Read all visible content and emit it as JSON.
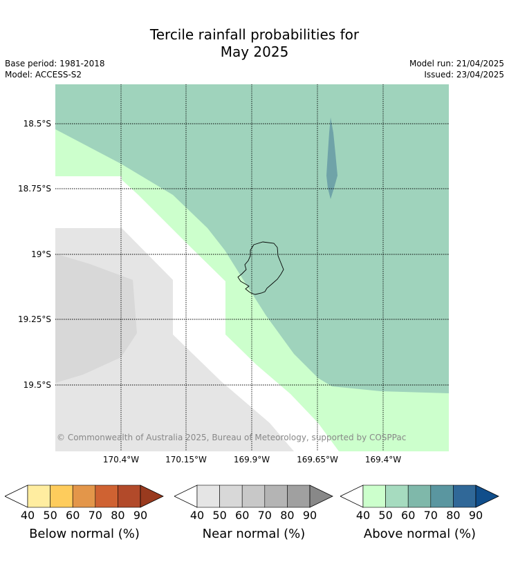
{
  "title_line1": "Tercile rainfall probabilities for",
  "title_line2": "May 2025",
  "base_period": "Base period: 1981-2018",
  "model": "Model: ACCESS-S2",
  "model_run": "Model run: 21/04/2025",
  "issued": "Issued: 23/04/2025",
  "lat_labels": [
    "18.5°S",
    "18.75°S",
    "19°S",
    "19.25°S",
    "19.5°S"
  ],
  "lon_labels": [
    "170.4°W",
    "170.15°W",
    "169.9°W",
    "169.65°W",
    "169.4°W"
  ],
  "copyright": "© Commonwealth of Australia 2025, Bureau of Meteorology, supported by COSPPac",
  "colorbars": [
    {
      "label": "Below normal (%)",
      "ticks": [
        "40",
        "50",
        "60",
        "70",
        "80",
        "90"
      ],
      "low_color": "#ffffff",
      "colors": [
        "#ffeda0",
        "#fecc5c",
        "#e3964a",
        "#cf6232",
        "#b24a2a"
      ],
      "high_color": "#993a1e"
    },
    {
      "label": "Near normal (%)",
      "ticks": [
        "40",
        "50",
        "60",
        "70",
        "80",
        "90"
      ],
      "low_color": "#ffffff",
      "colors": [
        "#e5e5e5",
        "#d8d8d8",
        "#c8c8c8",
        "#b4b4b4",
        "#a0a0a0"
      ],
      "high_color": "#888888"
    },
    {
      "label": "Above normal (%)",
      "ticks": [
        "40",
        "50",
        "60",
        "70",
        "80",
        "90"
      ],
      "low_color": "#ffffff",
      "colors": [
        "#ccffcc",
        "#a6dbbf",
        "#7fb8aa",
        "#5a96a0",
        "#306898"
      ],
      "high_color": "#104e8b"
    }
  ],
  "map_colors": {
    "above_50": "#9fd3bc",
    "above_40": "#ccffcc",
    "above_70": "#6fa3a8",
    "near_40": "#e5e5e5",
    "near_50": "#d8d8d8",
    "neutral": "#ffffff"
  }
}
